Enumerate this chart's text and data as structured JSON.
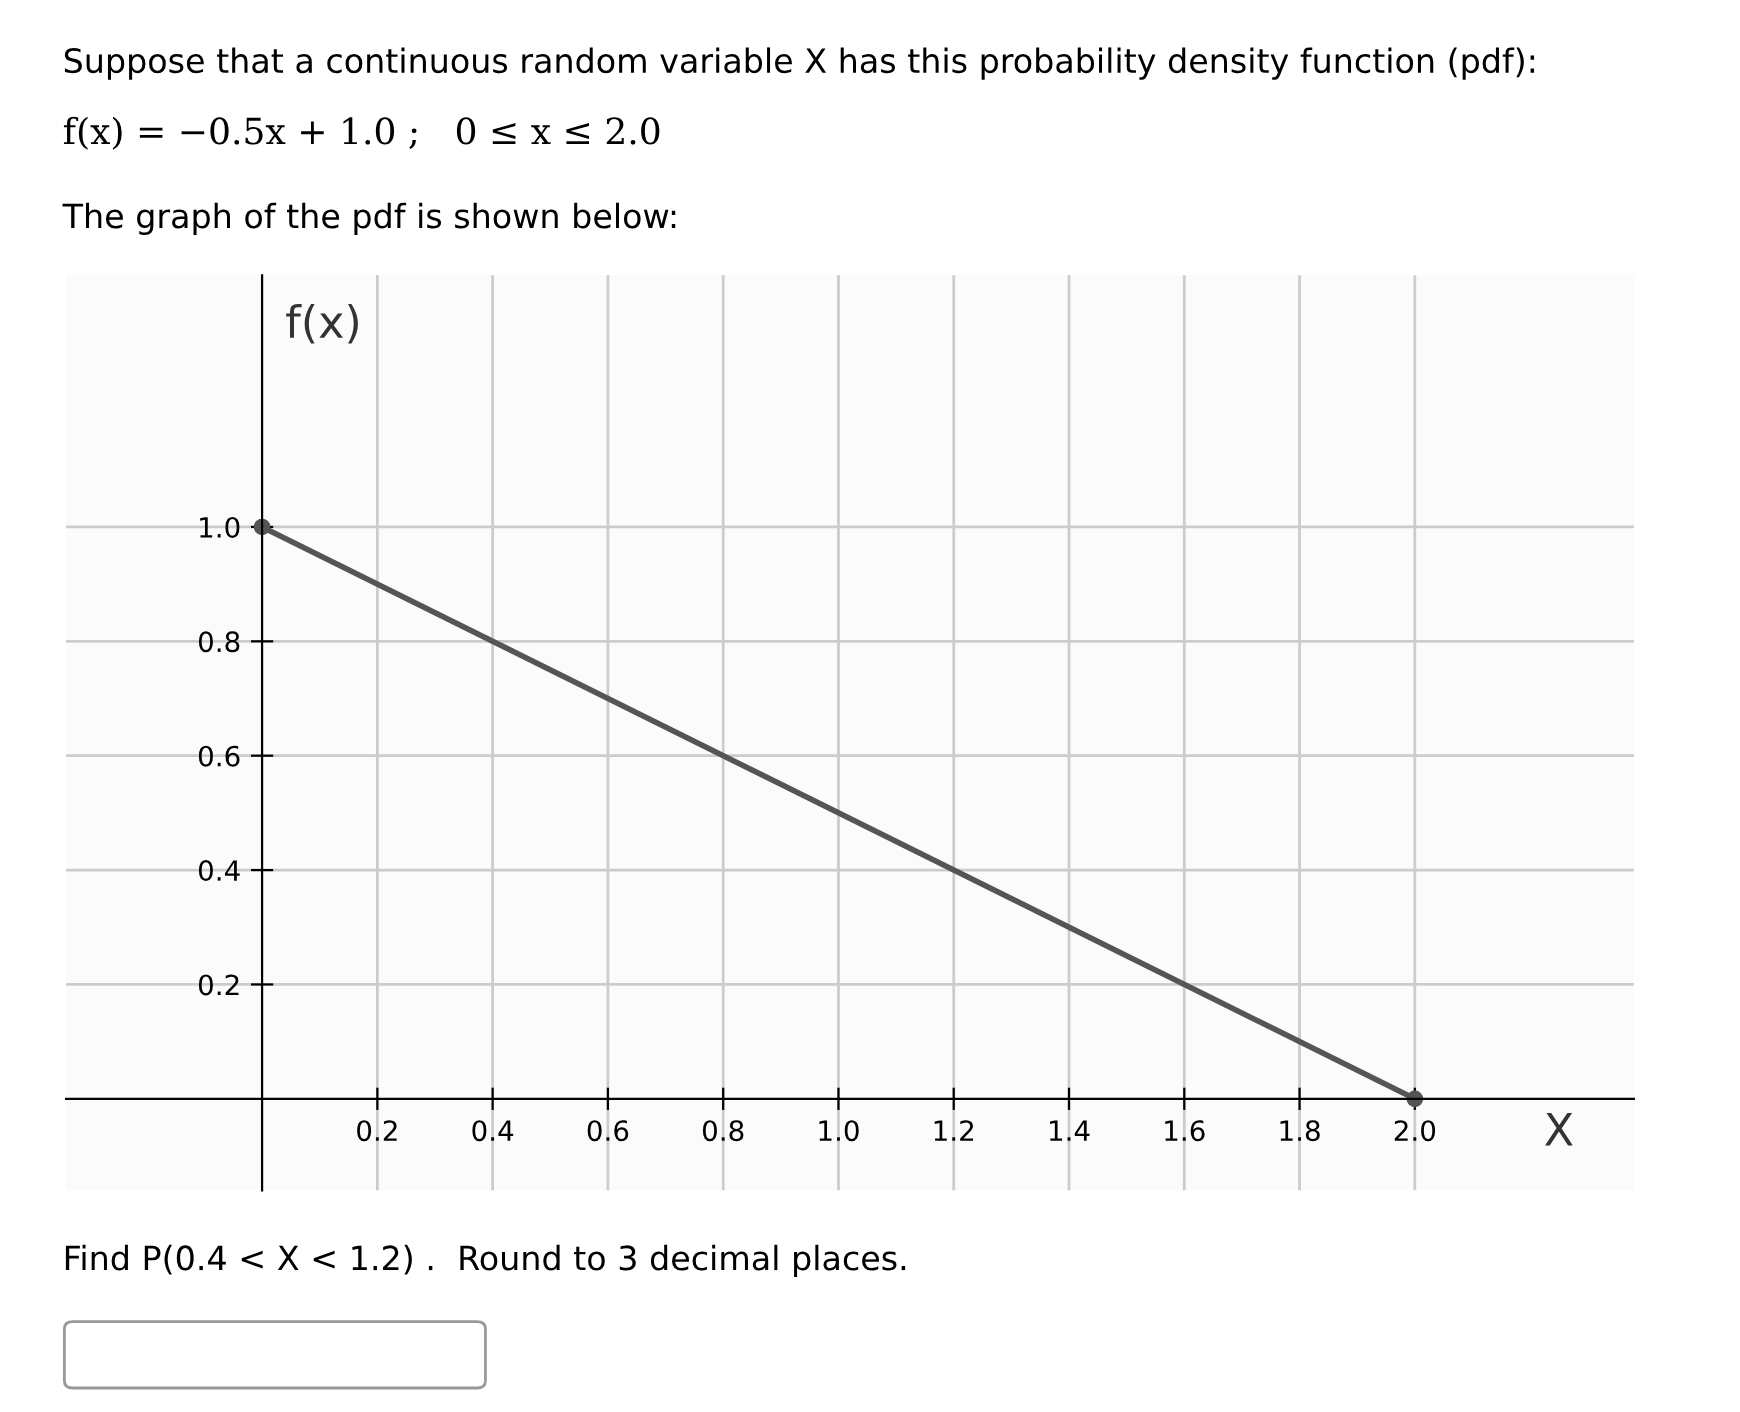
{
  "chart_data": {
    "type": "line",
    "title": "Suppose that a continuous random variable X has this probability density function (pdf):",
    "subtitle": "f(x) = −0.5x + 1.0 ;   0 ≤ x ≤ 2.0",
    "annotations": [
      "The graph of the pdf is shown below:",
      "Find P(0.4 < X < 1.2) .  Round to 3 decimal places."
    ],
    "xlabel": "X",
    "ylabel": "f(x)",
    "series": [
      {
        "color": "#555555",
        "x": [
          0,
          2.0
        ],
        "values": [
          1.0,
          0
        ]
      }
    ],
    "xlim": [
      -0.34,
      2.38
    ],
    "ylim": [
      -0.16,
      1.44
    ],
    "xticks": [
      0.2,
      0.4,
      0.6,
      0.8,
      {
        "value": 1.0,
        "label": "1.0"
      },
      1.2,
      1.4,
      1.6,
      1.8,
      {
        "value": 2.0,
        "label": "2.0"
      }
    ],
    "yticks": [
      0.2,
      0.4,
      0.6,
      0.8,
      {
        "value": 1.0,
        "label": "1.0"
      }
    ],
    "grid": true,
    "marker": "circle",
    "line_style": "solid"
  }
}
